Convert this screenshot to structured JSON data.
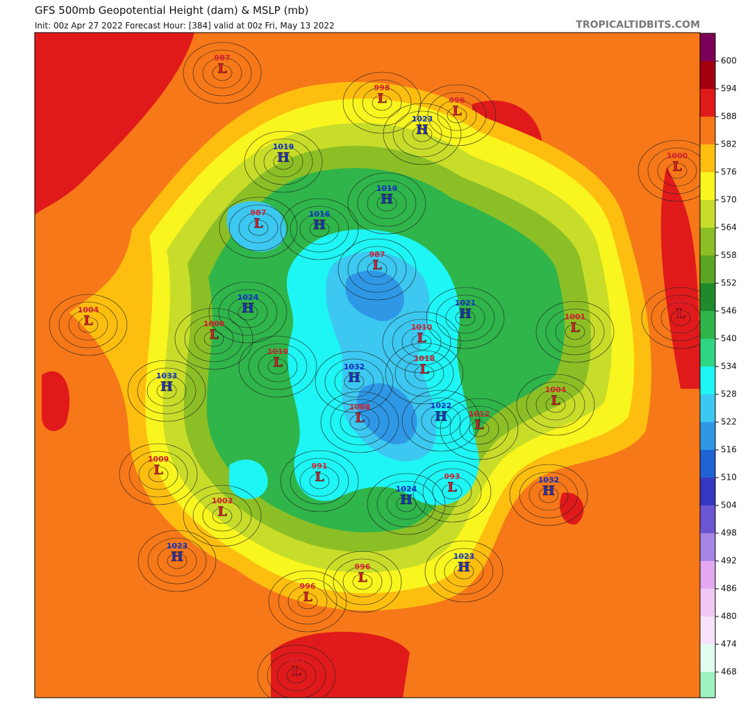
{
  "header": {
    "title": "GFS 500mb Geopotential Height (dam) & MSLP (mb)",
    "subtitle": "Init: 00z Apr 27 2022   Forecast Hour: [384]   valid at 00z Fri, May 13 2022",
    "brand": "TROPICALTIDBITS.COM"
  },
  "colorbar": {
    "ticks": [
      600,
      594,
      588,
      582,
      576,
      570,
      564,
      558,
      552,
      546,
      540,
      534,
      528,
      522,
      516,
      510,
      504,
      498,
      492,
      486,
      480,
      474,
      468
    ],
    "colors": [
      "#7b0057",
      "#a3000f",
      "#e01a1a",
      "#f77818",
      "#fdbe10",
      "#f9f51e",
      "#c8dd2a",
      "#8cbf26",
      "#5aa522",
      "#1f8a2c",
      "#2fb54a",
      "#2ed684",
      "#1ef5f5",
      "#3cc8f0",
      "#2e98e6",
      "#1f62d2",
      "#3538c0",
      "#6b55d0",
      "#a584e6",
      "#e3a8f0",
      "#f0c8f5",
      "#f8e4fa",
      "#e0fdf0",
      "#9ef2c0"
    ]
  },
  "centers": [
    {
      "type": "L",
      "pressure": "987"
    },
    {
      "type": "L",
      "pressure": "998"
    },
    {
      "type": "L",
      "pressure": "996"
    },
    {
      "type": "H",
      "pressure": "1023"
    },
    {
      "type": "H",
      "pressure": "1019"
    },
    {
      "type": "L",
      "pressure": "1000"
    },
    {
      "type": "H",
      "pressure": "1019"
    },
    {
      "type": "L",
      "pressure": "987"
    },
    {
      "type": "H",
      "pressure": "1016"
    },
    {
      "type": "L",
      "pressure": "987"
    },
    {
      "type": "L",
      "pressure": "1004"
    },
    {
      "type": "H",
      "pressure": "1024"
    },
    {
      "type": "L",
      "pressure": "1009"
    },
    {
      "type": "H",
      "pressure": "1021"
    },
    {
      "type": "L",
      "pressure": "1010"
    },
    {
      "type": "L",
      "pressure": "1001"
    },
    {
      "type": "L",
      "pressure": "1001"
    },
    {
      "type": "L",
      "pressure": "1019"
    },
    {
      "type": "L",
      "pressure": "1018"
    },
    {
      "type": "H",
      "pressure": "1033"
    },
    {
      "type": "H",
      "pressure": "1032"
    },
    {
      "type": "L",
      "pressure": "1004"
    },
    {
      "type": "L",
      "pressure": "1008"
    },
    {
      "type": "H",
      "pressure": "1022"
    },
    {
      "type": "L",
      "pressure": "1012"
    },
    {
      "type": "L",
      "pressure": "1009"
    },
    {
      "type": "L",
      "pressure": "991"
    },
    {
      "type": "L",
      "pressure": "993"
    },
    {
      "type": "H",
      "pressure": "1032"
    },
    {
      "type": "H",
      "pressure": "1024"
    },
    {
      "type": "L",
      "pressure": "1003"
    },
    {
      "type": "H",
      "pressure": "1023"
    },
    {
      "type": "H",
      "pressure": "1023"
    },
    {
      "type": "L",
      "pressure": "996"
    },
    {
      "type": "L",
      "pressure": "996"
    },
    {
      "type": "L",
      "pressure": "995"
    }
  ]
}
